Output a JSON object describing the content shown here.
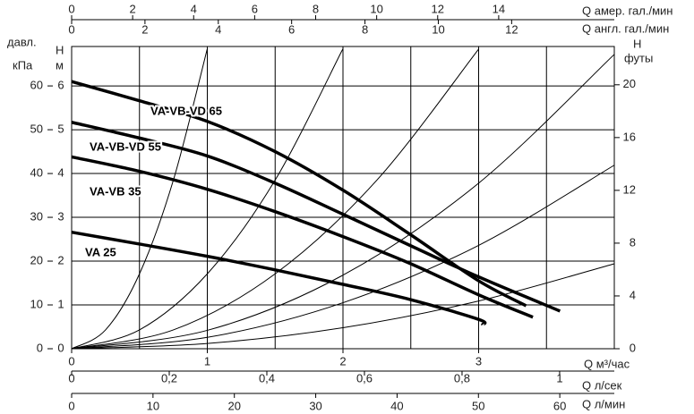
{
  "chart_data": {
    "type": "line",
    "xlabel": "Q  м³/час",
    "xlim": [
      0,
      4
    ],
    "xticks": [
      0,
      1,
      2,
      3
    ],
    "xgrid": [
      0.5,
      1,
      1.5,
      2,
      2.5,
      3,
      3.5,
      4
    ],
    "ylabel": [
      "H",
      "м"
    ],
    "ylim": [
      0,
      6.9
    ],
    "yticks": [
      0,
      1,
      2,
      3,
      4,
      5,
      6
    ],
    "grid": true,
    "kpa_axis": {
      "label": [
        "давл.",
        "кПа"
      ],
      "lim": [
        0,
        69
      ],
      "ticks": [
        0,
        10,
        20,
        30,
        40,
        50,
        60
      ]
    },
    "y2label": [
      "H",
      "футы"
    ],
    "y2lim": [
      0,
      22.9
    ],
    "y2ticks": [
      0,
      4,
      8,
      12,
      16,
      20
    ],
    "extra_x_axes": [
      {
        "label": "Q  л/сек",
        "side": "bottom",
        "lim": [
          0,
          1.112
        ],
        "ticks": [
          0,
          {
            "value": 0.2,
            "label": "0,2"
          },
          {
            "value": 0.4,
            "label": "0,4"
          },
          {
            "value": 0.6,
            "label": "0,6"
          },
          {
            "value": 0.8,
            "label": "0,8"
          },
          1
        ]
      },
      {
        "label": "Q  л/мин",
        "side": "bottom",
        "lim": [
          0,
          66.7
        ],
        "ticks": [
          0,
          10,
          20,
          30,
          40,
          50,
          60
        ]
      },
      {
        "label": "Q  амер. гал./мин",
        "side": "top",
        "lim": [
          0,
          17.79
        ],
        "ticks": [
          0,
          2,
          4,
          6,
          8,
          10,
          12,
          14
        ]
      },
      {
        "label": "Q  англ. гал./мин",
        "side": "top",
        "lim": [
          0,
          14.8
        ],
        "ticks": [
          0,
          2,
          4,
          6,
          8,
          10,
          12
        ]
      }
    ],
    "series": [
      {
        "name": "VA-VB-VD 65",
        "color": "#000000",
        "x": [
          0,
          0.5,
          1,
          1.5,
          2,
          2.5,
          3,
          3.35
        ],
        "values": [
          6.1,
          5.66,
          5.19,
          4.5,
          3.62,
          2.6,
          1.55,
          0.98
        ]
      },
      {
        "name": "VA-VB-VD 55",
        "color": "#000000",
        "x": [
          0,
          0.5,
          1,
          1.5,
          2,
          2.5,
          3,
          3.6
        ],
        "values": [
          5.17,
          4.81,
          4.4,
          3.78,
          3.07,
          2.35,
          1.64,
          0.86
        ]
      },
      {
        "name": "VA-VB 35",
        "color": "#000000",
        "x": [
          0,
          0.5,
          1,
          1.5,
          2,
          2.5,
          3,
          3.4
        ],
        "values": [
          4.38,
          4.05,
          3.64,
          3.13,
          2.56,
          1.94,
          1.23,
          0.72
        ]
      },
      {
        "name": "VA 25",
        "color": "#000000",
        "x": [
          0,
          0.5,
          1,
          1.5,
          2,
          2.5,
          3,
          3.03
        ],
        "values": [
          2.66,
          2.39,
          2.11,
          1.8,
          1.47,
          1.12,
          0.67,
          0.55
        ]
      }
    ],
    "reference_curves": [
      {
        "x": [
          0,
          0.25,
          0.5,
          0.75,
          1
        ],
        "values": [
          0,
          0.43,
          1.71,
          3.85,
          6.85
        ]
      },
      {
        "x": [
          0,
          0.5,
          1,
          1.5,
          2
        ],
        "values": [
          0,
          0.43,
          1.71,
          3.85,
          6.85
        ]
      },
      {
        "x": [
          0,
          0.75,
          1.5,
          2.25,
          3
        ],
        "values": [
          0,
          0.43,
          1.71,
          3.85,
          6.84
        ]
      },
      {
        "x": [
          0,
          1,
          2,
          3,
          4
        ],
        "values": [
          0,
          0.42,
          1.68,
          3.78,
          6.72
        ]
      },
      {
        "x": [
          0,
          1,
          2,
          3,
          4
        ],
        "values": [
          0,
          0.26,
          1.05,
          2.36,
          4.19
        ]
      },
      {
        "x": [
          0,
          1,
          2,
          3,
          4
        ],
        "values": [
          0,
          0.12,
          0.48,
          1.09,
          1.94
        ]
      }
    ]
  }
}
